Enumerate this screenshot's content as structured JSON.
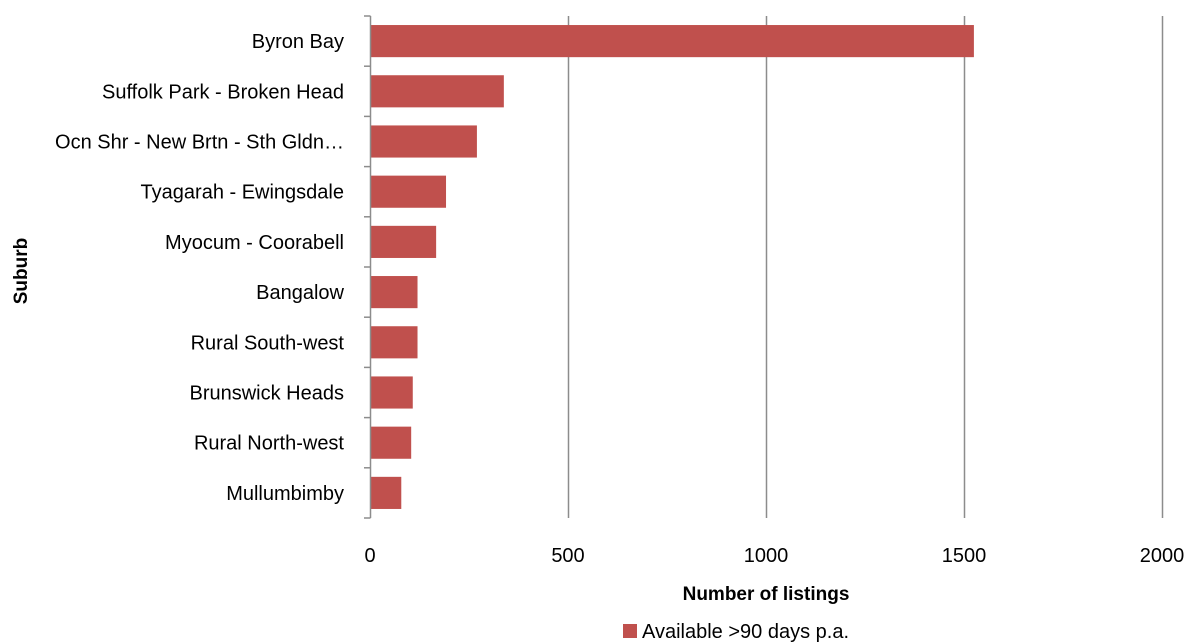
{
  "chart_data": {
    "type": "bar",
    "orientation": "horizontal",
    "categories": [
      "Byron Bay",
      "Suffolk Park - Broken Head",
      "Ocn Shr - New Brtn - Sth Gldn…",
      "Tyagarah - Ewingsdale",
      "Myocum - Coorabell",
      "Bangalow",
      "Rural South-west",
      "Brunswick Heads",
      "Rural North-west",
      "Mullumbimby"
    ],
    "series": [
      {
        "name": "Available >90 days p.a.",
        "color": "#C0504D",
        "values": [
          1525,
          338,
          270,
          192,
          167,
          120,
          120,
          108,
          104,
          79
        ]
      }
    ],
    "xlabel": "Number of listings",
    "ylabel": "Suburb",
    "xlim": [
      0,
      2000
    ],
    "xticks": [
      0,
      500,
      1000,
      1500,
      2000
    ],
    "grid": "vertical",
    "legend_position": "bottom"
  }
}
